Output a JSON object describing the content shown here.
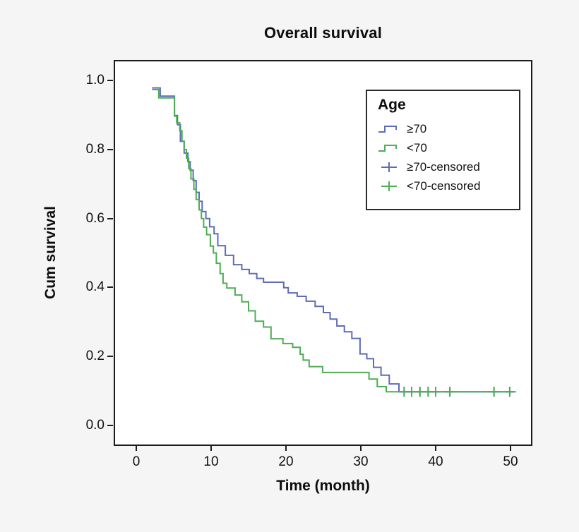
{
  "title": "Overall survival",
  "colors": {
    "older_group": "#5d6cb4",
    "younger_group": "#4fad55",
    "frame": "#1c1c1c",
    "background": "#f5f5f6",
    "plot_background": "#ffffff"
  },
  "axes": {
    "x": {
      "label": "Time (month)",
      "tick_values": [
        0,
        10,
        20,
        30,
        40,
        50
      ],
      "tick_labels": [
        "0",
        "10",
        "20",
        "30",
        "40",
        "50"
      ]
    },
    "y": {
      "label": "Cum survival",
      "tick_values": [
        0.0,
        0.2,
        0.4,
        0.6,
        0.8,
        1.0
      ],
      "tick_labels": [
        "0.0",
        "0.2",
        "0.4",
        "0.6",
        "0.8",
        "1.0"
      ]
    }
  },
  "legend": {
    "title": "Age",
    "items": [
      {
        "label": "≥70",
        "symbol": "step-line",
        "color": "#5d6cb4"
      },
      {
        "label": "<70",
        "symbol": "step-line",
        "color": "#4fad55"
      },
      {
        "label": "≥70-censored",
        "symbol": "plus-marker",
        "color": "#5d6cb4"
      },
      {
        "label": "<70-censored",
        "symbol": "plus-marker",
        "color": "#4fad55"
      }
    ]
  },
  "chart_data": {
    "type": "line",
    "subtype": "kaplan-meier-step",
    "title": "Overall survival",
    "xlabel": "Time (month)",
    "ylabel": "Cum survival",
    "xlim": [
      -2.83,
      52.74
    ],
    "ylim": [
      -0.056,
      1.056
    ],
    "x_ticks": [
      0,
      10,
      20,
      30,
      40,
      50
    ],
    "y_ticks": [
      0.0,
      0.2,
      0.4,
      0.6,
      0.8,
      1.0
    ],
    "grid": false,
    "legend_position": "upper-right-inside",
    "legend_title": "Age",
    "series": [
      {
        "name": "≥70",
        "color": "#5d6cb4",
        "style": "step",
        "end_x": 50.7,
        "points": [
          [
            2.1,
            0.979
          ],
          [
            3.2,
            0.955
          ],
          [
            5.1,
            0.899
          ],
          [
            5.5,
            0.872
          ],
          [
            5.9,
            0.824
          ],
          [
            6.4,
            0.79
          ],
          [
            6.9,
            0.765
          ],
          [
            7.2,
            0.74
          ],
          [
            7.6,
            0.71
          ],
          [
            8.0,
            0.676
          ],
          [
            8.4,
            0.65
          ],
          [
            8.8,
            0.62
          ],
          [
            9.3,
            0.6
          ],
          [
            9.8,
            0.576
          ],
          [
            10.4,
            0.556
          ],
          [
            10.9,
            0.521
          ],
          [
            11.9,
            0.493
          ],
          [
            13.0,
            0.466
          ],
          [
            14.1,
            0.452
          ],
          [
            15.1,
            0.44
          ],
          [
            16.1,
            0.426
          ],
          [
            17.0,
            0.415
          ],
          [
            19.7,
            0.399
          ],
          [
            20.3,
            0.384
          ],
          [
            21.5,
            0.374
          ],
          [
            22.7,
            0.36
          ],
          [
            23.9,
            0.345
          ],
          [
            25.0,
            0.327
          ],
          [
            25.9,
            0.308
          ],
          [
            26.8,
            0.288
          ],
          [
            27.8,
            0.271
          ],
          [
            28.8,
            0.252
          ],
          [
            29.9,
            0.207
          ],
          [
            30.8,
            0.193
          ],
          [
            31.7,
            0.168
          ],
          [
            32.7,
            0.145
          ],
          [
            33.8,
            0.12
          ],
          [
            35.1,
            0.097
          ]
        ]
      },
      {
        "name": "<70",
        "color": "#4fad55",
        "style": "step",
        "end_x": 50.7,
        "points": [
          [
            2.1,
            0.974
          ],
          [
            3.0,
            0.95
          ],
          [
            5.1,
            0.897
          ],
          [
            5.4,
            0.878
          ],
          [
            5.8,
            0.855
          ],
          [
            6.1,
            0.824
          ],
          [
            6.4,
            0.8
          ],
          [
            6.7,
            0.775
          ],
          [
            7.0,
            0.745
          ],
          [
            7.3,
            0.715
          ],
          [
            7.7,
            0.685
          ],
          [
            8.0,
            0.655
          ],
          [
            8.4,
            0.625
          ],
          [
            8.7,
            0.6
          ],
          [
            9.0,
            0.575
          ],
          [
            9.4,
            0.553
          ],
          [
            9.9,
            0.52
          ],
          [
            10.3,
            0.5
          ],
          [
            10.7,
            0.47
          ],
          [
            11.2,
            0.44
          ],
          [
            11.6,
            0.412
          ],
          [
            12.1,
            0.398
          ],
          [
            13.2,
            0.378
          ],
          [
            14.1,
            0.358
          ],
          [
            15.0,
            0.332
          ],
          [
            15.9,
            0.302
          ],
          [
            17.0,
            0.285
          ],
          [
            18.0,
            0.251
          ],
          [
            19.6,
            0.237
          ],
          [
            20.9,
            0.226
          ],
          [
            21.9,
            0.206
          ],
          [
            22.3,
            0.189
          ],
          [
            23.1,
            0.17
          ],
          [
            24.9,
            0.153
          ],
          [
            31.1,
            0.134
          ],
          [
            32.2,
            0.112
          ],
          [
            33.4,
            0.097
          ]
        ]
      },
      {
        "name": "≥70-censored",
        "color": "#5d6cb4",
        "style": "marker",
        "marker": "plus",
        "points": [
          [
            35.8,
            0.097
          ],
          [
            36.8,
            0.097
          ],
          [
            37.9,
            0.097
          ],
          [
            39.0,
            0.097
          ],
          [
            40.0,
            0.097
          ],
          [
            41.9,
            0.097
          ],
          [
            47.8,
            0.097
          ],
          [
            49.9,
            0.097
          ]
        ]
      },
      {
        "name": "<70-censored",
        "color": "#4fad55",
        "style": "marker",
        "marker": "plus",
        "points": [
          [
            35.8,
            0.097
          ],
          [
            36.8,
            0.097
          ],
          [
            37.9,
            0.097
          ],
          [
            39.0,
            0.097
          ],
          [
            40.0,
            0.097
          ],
          [
            41.9,
            0.097
          ],
          [
            47.8,
            0.097
          ],
          [
            49.9,
            0.097
          ]
        ]
      }
    ]
  }
}
